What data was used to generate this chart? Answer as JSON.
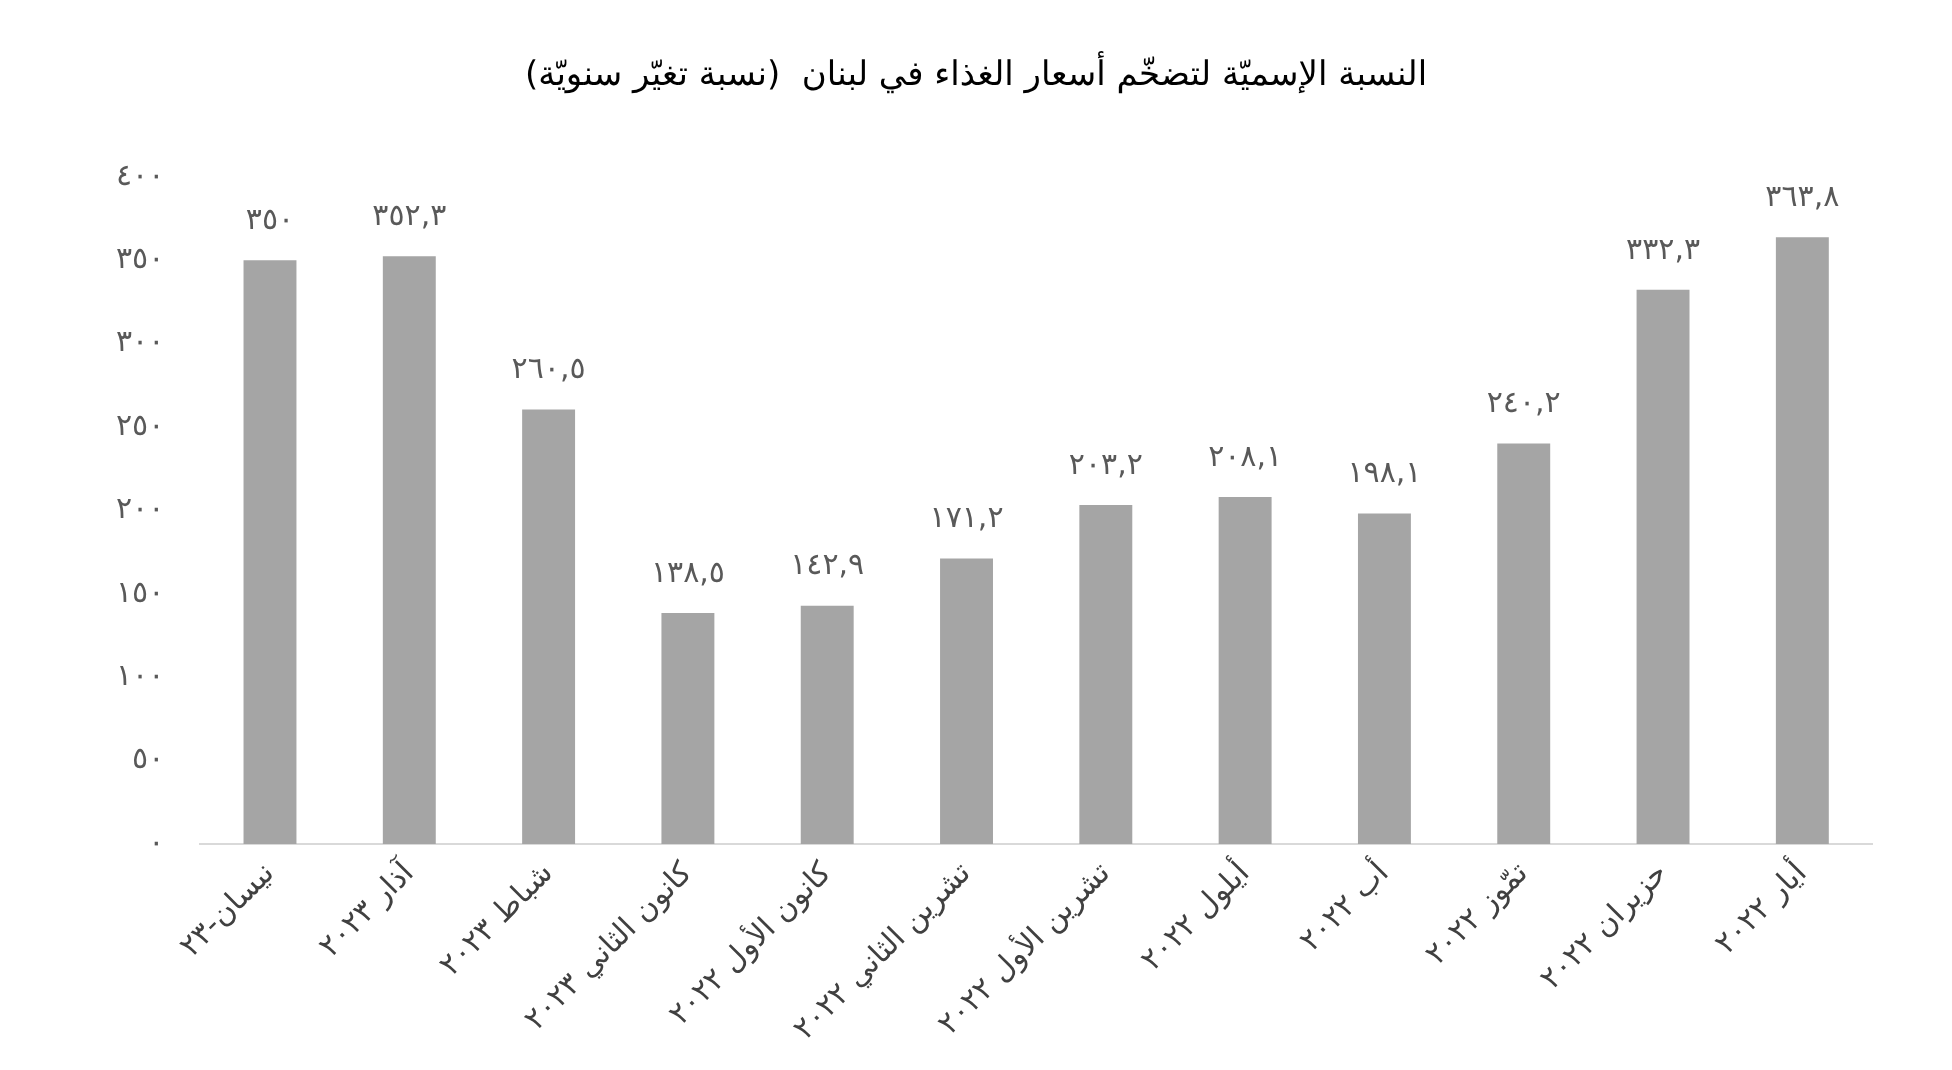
{
  "chart_data": {
    "type": "bar",
    "title": "النسبة الإسميّة لتضخّم أسعار الغذاء في لبنان  (نسبة تغيّر سنويّة)",
    "categories": [
      "نيسان-٢٣",
      "آذار ٢٠٢٣",
      "شباط ٢٠٢٣",
      "كانون الثاني ٢٠٢٣",
      "كانون الأول ٢٠٢٢",
      "تشرين الثاني ٢٠٢٢",
      "تشرين الأول ٢٠٢٢",
      "أيلول ٢٠٢٢",
      "أب ٢٠٢٢",
      "تمّوز ٢٠٢٢",
      "حزيران ٢٠٢٢",
      "أيار ٢٠٢٢"
    ],
    "values": [
      350,
      352.3,
      260.5,
      138.5,
      142.9,
      171.2,
      203.2,
      208.1,
      198.1,
      240.2,
      332.3,
      363.8
    ],
    "value_labels": [
      "٣٥٠",
      "٣٥٢,٣",
      "٢٦٠,٥",
      "١٣٨,٥",
      "١٤٢,٩",
      "١٧١,٢",
      "٢٠٣,٢",
      "٢٠٨,١",
      "١٩٨,١",
      "٢٤٠,٢",
      "٣٣٢,٣",
      "٣٦٣,٨"
    ],
    "color": "#a5a5a5",
    "ylim": [
      0,
      400
    ],
    "yticks": [
      {
        "value": 0,
        "label": "٠"
      },
      {
        "value": 50,
        "label": "٥٠"
      },
      {
        "value": 100,
        "label": "١٠٠"
      },
      {
        "value": 150,
        "label": "١٥٠"
      },
      {
        "value": 200,
        "label": "٢٠٠"
      },
      {
        "value": 250,
        "label": "٢٥٠"
      },
      {
        "value": 300,
        "label": "٣٠٠"
      },
      {
        "value": 350,
        "label": "٣٥٠"
      },
      {
        "value": 400,
        "label": "٤٠٠"
      }
    ],
    "grid": false,
    "legend": false
  }
}
